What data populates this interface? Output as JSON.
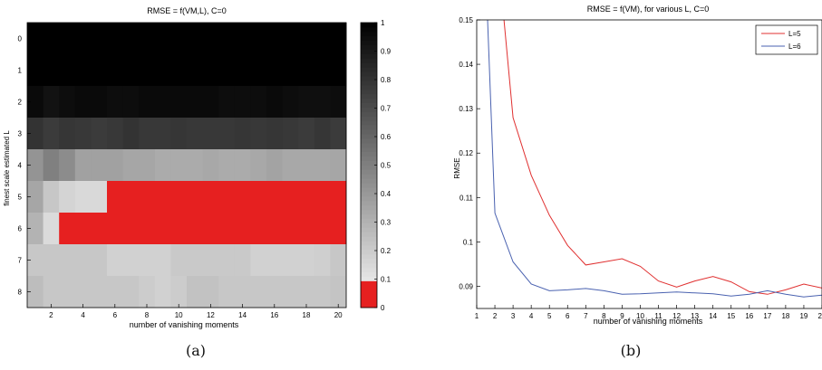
{
  "chart_data": [
    {
      "type": "heatmap",
      "title": "RMSE = f(VM,L), C=0",
      "xlabel": "number of vanishing moments",
      "ylabel": "finest scale estimated L",
      "x_tick_labels": [
        "2",
        "4",
        "6",
        "8",
        "10",
        "12",
        "14",
        "16",
        "18",
        "20"
      ],
      "y_tick_labels": [
        "0",
        "1",
        "2",
        "3",
        "4",
        "5",
        "6",
        "7",
        "8"
      ],
      "x": [
        1,
        2,
        3,
        4,
        5,
        6,
        7,
        8,
        9,
        10,
        11,
        12,
        13,
        14,
        15,
        16,
        17,
        18,
        19,
        20
      ],
      "y": [
        0,
        1,
        2,
        3,
        4,
        5,
        6,
        7,
        8
      ],
      "clim": [
        0,
        1
      ],
      "colorbar_ticks": [
        "0",
        "0.1",
        "0.2",
        "0.3",
        "0.4",
        "0.5",
        "0.6",
        "0.7",
        "0.8",
        "0.9",
        "1"
      ],
      "colormap": "gray, with values below 0.1 drawn red",
      "low_color": "#e62020",
      "values": [
        [
          1,
          1,
          1,
          1,
          1,
          1,
          1,
          1,
          1,
          1,
          1,
          1,
          1,
          1,
          1,
          1,
          1,
          1,
          1,
          1
        ],
        [
          1,
          1,
          1,
          1,
          1,
          1,
          1,
          1,
          1,
          1,
          1,
          1,
          1,
          1,
          1,
          1,
          1,
          1,
          1,
          1
        ],
        [
          0.96,
          0.93,
          0.95,
          0.96,
          0.96,
          0.95,
          0.95,
          0.96,
          0.96,
          0.96,
          0.96,
          0.96,
          0.95,
          0.95,
          0.95,
          0.96,
          0.95,
          0.94,
          0.94,
          0.95
        ],
        [
          0.8,
          0.77,
          0.79,
          0.78,
          0.77,
          0.78,
          0.8,
          0.78,
          0.78,
          0.79,
          0.78,
          0.78,
          0.78,
          0.79,
          0.78,
          0.79,
          0.78,
          0.77,
          0.79,
          0.77
        ],
        [
          0.42,
          0.5,
          0.45,
          0.37,
          0.37,
          0.37,
          0.35,
          0.35,
          0.33,
          0.33,
          0.33,
          0.34,
          0.33,
          0.33,
          0.34,
          0.36,
          0.34,
          0.34,
          0.34,
          0.35
        ],
        [
          0.35,
          0.22,
          0.17,
          0.15,
          0.15,
          0.05,
          0.05,
          0.05,
          0.05,
          0.05,
          0.05,
          0.05,
          0.05,
          0.05,
          0.05,
          0.05,
          0.05,
          0.05,
          0.05,
          0.05
        ],
        [
          0.3,
          0.14,
          0.05,
          0.05,
          0.05,
          0.05,
          0.05,
          0.05,
          0.05,
          0.05,
          0.05,
          0.05,
          0.05,
          0.05,
          0.05,
          0.05,
          0.05,
          0.05,
          0.05,
          0.05
        ],
        [
          0.22,
          0.22,
          0.22,
          0.22,
          0.22,
          0.18,
          0.18,
          0.18,
          0.18,
          0.21,
          0.21,
          0.21,
          0.21,
          0.21,
          0.18,
          0.18,
          0.18,
          0.18,
          0.19,
          0.22
        ],
        [
          0.26,
          0.22,
          0.22,
          0.22,
          0.22,
          0.22,
          0.22,
          0.2,
          0.18,
          0.2,
          0.24,
          0.24,
          0.22,
          0.22,
          0.22,
          0.22,
          0.22,
          0.22,
          0.22,
          0.23
        ]
      ]
    },
    {
      "type": "line",
      "title": "RMSE = f(VM), for various L, C=0",
      "xlabel": "number of vanishing moments",
      "ylabel": "RMSE",
      "xlim": [
        1,
        20
      ],
      "ylim": [
        0.085,
        0.15
      ],
      "x_tick_labels": [
        "1",
        "2",
        "3",
        "4",
        "5",
        "6",
        "7",
        "8",
        "9",
        "10",
        "11",
        "12",
        "13",
        "14",
        "15",
        "16",
        "17",
        "18",
        "19",
        "20"
      ],
      "y_tick_labels": [
        "0.09",
        "0.1",
        "0.11",
        "0.12",
        "0.13",
        "0.14",
        "0.15"
      ],
      "legend_position": "top-right",
      "series": [
        {
          "name": "L=5",
          "color": "#e03030",
          "x": [
            2.5,
            3,
            4,
            5,
            6,
            7,
            8,
            9,
            10,
            11,
            12,
            13,
            14,
            15,
            16,
            17,
            18,
            19,
            20
          ],
          "values": [
            0.15,
            0.128,
            0.115,
            0.106,
            0.0992,
            0.0948,
            0.0955,
            0.0962,
            0.0945,
            0.0912,
            0.0898,
            0.0912,
            0.0922,
            0.091,
            0.0888,
            0.0882,
            0.0892,
            0.0905,
            0.0896
          ]
        },
        {
          "name": "L=6",
          "color": "#4a62b0",
          "x": [
            1.6,
            2,
            3,
            4,
            5,
            6,
            7,
            8,
            9,
            10,
            11,
            12,
            13,
            14,
            15,
            16,
            17,
            18,
            19,
            20
          ],
          "values": [
            0.15,
            0.1065,
            0.0955,
            0.0905,
            0.089,
            0.0892,
            0.0895,
            0.089,
            0.0882,
            0.0883,
            0.0885,
            0.0887,
            0.0885,
            0.0883,
            0.0878,
            0.0882,
            0.089,
            0.0882,
            0.0876,
            0.088
          ]
        }
      ]
    }
  ],
  "captions": [
    "(a)",
    "(b)"
  ]
}
